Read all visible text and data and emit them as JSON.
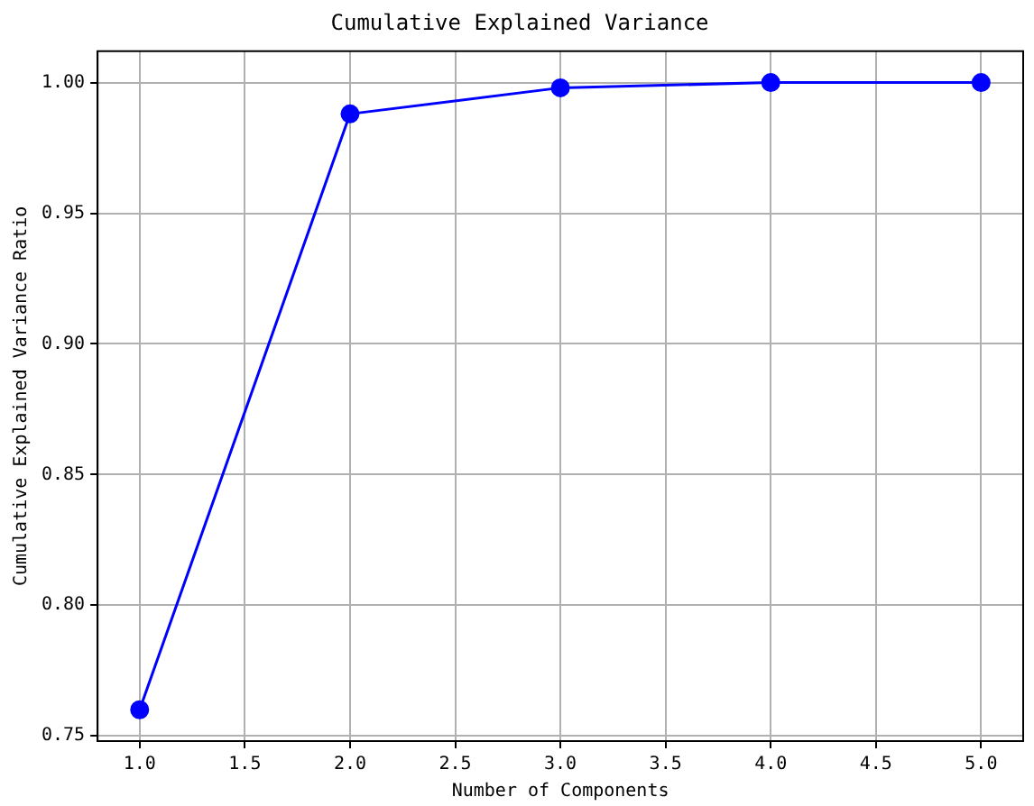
{
  "chart_data": {
    "type": "line",
    "title": "Cumulative Explained Variance",
    "xlabel": "Number of Components",
    "ylabel": "Cumulative Explained Variance Ratio",
    "x": [
      1,
      2,
      3,
      4,
      5
    ],
    "series": [
      {
        "color": "#0000ff",
        "values": [
          0.76,
          0.988,
          0.998,
          1.0,
          1.0
        ]
      }
    ],
    "xlim": [
      0.8,
      5.2
    ],
    "xticks": [
      {
        "value": 1,
        "label": "1.0"
      },
      {
        "value": 1.5,
        "label": "1.5"
      },
      {
        "value": 2,
        "label": "2.0"
      },
      {
        "value": 2.5,
        "label": "2.5"
      },
      {
        "value": 3,
        "label": "3.0"
      },
      {
        "value": 3.5,
        "label": "3.5"
      },
      {
        "value": 4,
        "label": "4.0"
      },
      {
        "value": 4.5,
        "label": "4.5"
      },
      {
        "value": 5,
        "label": "5.0"
      }
    ],
    "ylim": [
      0.748,
      1.012
    ],
    "yticks": [
      0.75,
      {
        "value": 0.8,
        "label": "0.80"
      },
      0.85,
      {
        "value": 0.9,
        "label": "0.90"
      },
      0.95,
      {
        "value": 1,
        "label": "1.00"
      }
    ],
    "grid": true,
    "legend": false,
    "marker": "circle",
    "line_style": "solid"
  }
}
